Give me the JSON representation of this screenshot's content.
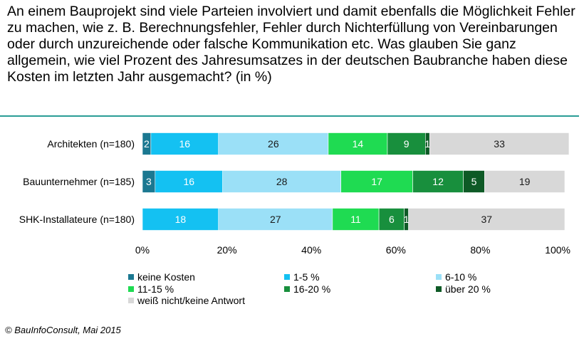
{
  "title": "An einem Bauprojekt sind viele Parteien involviert und damit ebenfalls die Möglichkeit Fehler zu machen, wie z. B. Berechnungsfehler, Fehler durch Nichterfüllung von Vereinbarungen oder durch unzureichende oder falsche Kommunikation etc. Was glauben Sie ganz allgemein, wie viel Prozent des Jahresumsatzes in der deutschen Baubranche haben diese Kosten im letzten Jahr ausgemacht? (in %)",
  "source": "© BauInfoConsult, Mai 2015",
  "colors": {
    "title_rule": "#2a9d96"
  },
  "chart_data": {
    "type": "bar",
    "orientation": "horizontal",
    "stacked": true,
    "categories": [
      "Architekten (n=180)",
      "Bauunternehmer (n=185)",
      "SHK-Installateure (n=180)"
    ],
    "series": [
      {
        "name": "keine Kosten",
        "color": "#1b7891",
        "values": [
          2,
          3,
          0
        ],
        "labels": [
          "2",
          "3",
          ""
        ]
      },
      {
        "name": "1-5 %",
        "color": "#14c1f2",
        "values": [
          16,
          16,
          18
        ],
        "labels": [
          "16",
          "16",
          "18"
        ]
      },
      {
        "name": "6-10 %",
        "color": "#9be0f7",
        "values": [
          26,
          28,
          27
        ],
        "labels": [
          "26",
          "28",
          "27"
        ]
      },
      {
        "name": "11-15 %",
        "color": "#1fdb52",
        "values": [
          14,
          17,
          11
        ],
        "labels": [
          "14",
          "17",
          "11"
        ]
      },
      {
        "name": "16-20 %",
        "color": "#188f3d",
        "values": [
          9,
          12,
          6
        ],
        "labels": [
          "9",
          "12",
          "6"
        ]
      },
      {
        "name": "über 20 %",
        "color": "#0e5a26",
        "values": [
          1,
          5,
          1
        ],
        "labels": [
          "1",
          "5",
          "1"
        ]
      },
      {
        "name": "weiß nicht/keine Antwort",
        "color": "#d8d8d8",
        "values": [
          33,
          19,
          37
        ],
        "labels": [
          "33",
          "19",
          "37"
        ]
      }
    ],
    "xlim": [
      0,
      100
    ],
    "xticks": [
      "0%",
      "20%",
      "40%",
      "60%",
      "80%",
      "100%"
    ],
    "grid": false,
    "legend": "bottom"
  }
}
